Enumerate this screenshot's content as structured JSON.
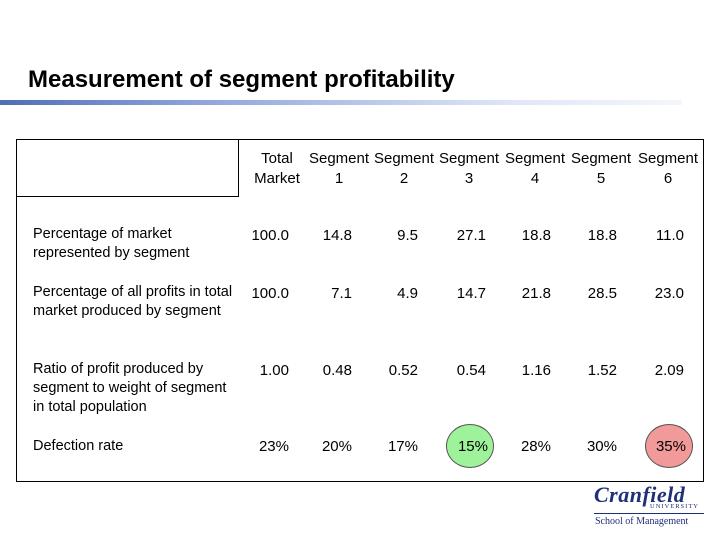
{
  "title": "Measurement of segment profitability",
  "columns": [
    {
      "line1": "Total",
      "line2": "Market"
    },
    {
      "line1": "Segment",
      "line2": "1"
    },
    {
      "line1": "Segment",
      "line2": "2"
    },
    {
      "line1": "Segment",
      "line2": "3"
    },
    {
      "line1": "Segment",
      "line2": "4"
    },
    {
      "line1": "Segment",
      "line2": "5"
    },
    {
      "line1": "Segment",
      "line2": "6"
    }
  ],
  "rows": [
    {
      "label": "Percentage of market represented by segment",
      "values": [
        "100.0",
        "14.8",
        "9.5",
        "27.1",
        "18.8",
        "18.8",
        "11.0"
      ]
    },
    {
      "label": "Percentage of all profits in total market produced by segment",
      "values": [
        "100.0",
        "7.1",
        "4.9",
        "14.7",
        "21.8",
        "28.5",
        "23.0"
      ]
    },
    {
      "label": "Ratio of profit produced by segment to weight of segment in total population",
      "values": [
        "1.00",
        "0.48",
        "0.52",
        "0.54",
        "1.16",
        "1.52",
        "2.09"
      ]
    },
    {
      "label": "Defection rate",
      "values": [
        "23%",
        "20%",
        "17%",
        "15%",
        "28%",
        "30%",
        "35%"
      ]
    }
  ],
  "highlights": {
    "lowest_defection_color": "#9ef29a",
    "highest_defection_color": "#f29a9a"
  },
  "logo": {
    "name": "Cranfield",
    "subtitle": "UNIVERSITY",
    "school": "School of Management",
    "color": "#1f2f7a"
  }
}
